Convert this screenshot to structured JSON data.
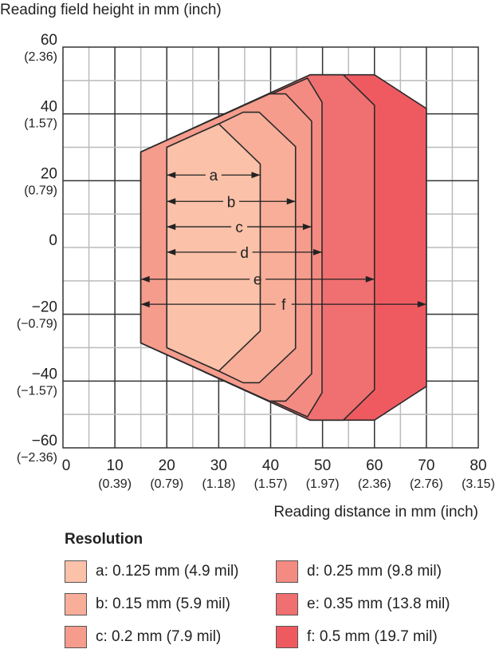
{
  "chart_data": {
    "type": "area",
    "title": "",
    "ylabel": "Reading field height in mm (inch)",
    "xlabel": "Reading distance in mm (inch)",
    "xlim": [
      0,
      80
    ],
    "ylim": [
      -60,
      60
    ],
    "grid": true,
    "x_ticks": [
      {
        "v": 0,
        "mm": "0",
        "inch": ""
      },
      {
        "v": 10,
        "mm": "10",
        "inch": "(0.39)"
      },
      {
        "v": 20,
        "mm": "20",
        "inch": "(0.79)"
      },
      {
        "v": 30,
        "mm": "30",
        "inch": "(1.18)"
      },
      {
        "v": 40,
        "mm": "40",
        "inch": "(1.57)"
      },
      {
        "v": 50,
        "mm": "50",
        "inch": "(1.97)"
      },
      {
        "v": 60,
        "mm": "60",
        "inch": "(2.36)"
      },
      {
        "v": 70,
        "mm": "70",
        "inch": "(2.76)"
      },
      {
        "v": 80,
        "mm": "80",
        "inch": "(3.15)"
      }
    ],
    "y_ticks": [
      {
        "v": 60,
        "mm": "60",
        "inch": "(2.36)"
      },
      {
        "v": 40,
        "mm": "40",
        "inch": "(1.57)"
      },
      {
        "v": 20,
        "mm": "20",
        "inch": "(0.79)"
      },
      {
        "v": 0,
        "mm": "0",
        "inch": ""
      },
      {
        "v": -20,
        "mm": "−20",
        "inch": "(−0.79)"
      },
      {
        "v": -40,
        "mm": "−40",
        "inch": "(−1.57)"
      },
      {
        "v": -60,
        "mm": "−60",
        "inch": "(−2.36)"
      }
    ],
    "legend_title": "Resolution",
    "legend_placement": "bottom",
    "series": [
      {
        "id": "f",
        "name": "f: 0.5 mm (19.7 mil)",
        "color": "#ef5a61",
        "polygon": [
          [
            15,
            28.6
          ],
          [
            47.6,
            51.7
          ],
          [
            60,
            51.7
          ],
          [
            70,
            41.6
          ],
          [
            70,
            -41.6
          ],
          [
            60,
            -51.7
          ],
          [
            47.6,
            -51.7
          ],
          [
            15,
            -28.6
          ]
        ],
        "arrow": {
          "y": -17,
          "from": 15,
          "to": 70
        }
      },
      {
        "id": "e",
        "name": "e: 0.35 mm (13.8 mil)",
        "color": "#f06f70",
        "polygon": [
          [
            15,
            28.6
          ],
          [
            47.6,
            51.7
          ],
          [
            54,
            51.7
          ],
          [
            60,
            42.6
          ],
          [
            60,
            -42.6
          ],
          [
            54,
            -51.7
          ],
          [
            47.6,
            -51.7
          ],
          [
            15,
            -28.6
          ]
        ],
        "arrow": {
          "y": -9.5,
          "from": 15,
          "to": 60
        }
      },
      {
        "id": "d",
        "name": "d: 0.25 mm (9.8 mil)",
        "color": "#f48b82",
        "polygon": [
          [
            15,
            28.6
          ],
          [
            47.1,
            50.7
          ],
          [
            49.9,
            43.5
          ],
          [
            49.9,
            -43.5
          ],
          [
            47.1,
            -50.7
          ],
          [
            15,
            -28.6
          ]
        ],
        "arrow": {
          "y": -1.4,
          "from": 20,
          "to": 49.9
        }
      },
      {
        "id": "c",
        "name": "c: 0.2 mm (7.9 mil)",
        "color": "#f59c8d",
        "polygon": [
          [
            15,
            28.6
          ],
          [
            39.8,
            46
          ],
          [
            42.9,
            46
          ],
          [
            47.9,
            37.8
          ],
          [
            47.9,
            -37.8
          ],
          [
            42.9,
            -46
          ],
          [
            39.8,
            -46
          ],
          [
            15,
            -28.6
          ]
        ],
        "arrow": {
          "y": 6.2,
          "from": 20,
          "to": 47.9
        }
      },
      {
        "id": "b",
        "name": "b: 0.15 mm (5.9 mil)",
        "color": "#f8ae99",
        "polygon": [
          [
            20,
            30
          ],
          [
            30,
            37
          ],
          [
            34.7,
            40.5
          ],
          [
            37.8,
            40.5
          ],
          [
            44.8,
            30.2
          ],
          [
            44.8,
            -30.2
          ],
          [
            37.8,
            -40.5
          ],
          [
            34.7,
            -40.5
          ],
          [
            30,
            -37
          ],
          [
            20,
            -30
          ]
        ],
        "arrow": {
          "y": 13.8,
          "from": 20,
          "to": 44.8
        }
      },
      {
        "id": "a",
        "name": "a: 0.125 mm (4.9 mil)",
        "color": "#fbc1a9",
        "polygon": [
          [
            20,
            30
          ],
          [
            30,
            37
          ],
          [
            38,
            25
          ],
          [
            38,
            -25
          ],
          [
            30,
            -37
          ],
          [
            20,
            -30
          ]
        ],
        "arrow": {
          "y": 21.7,
          "from": 20,
          "to": 38
        }
      }
    ]
  }
}
